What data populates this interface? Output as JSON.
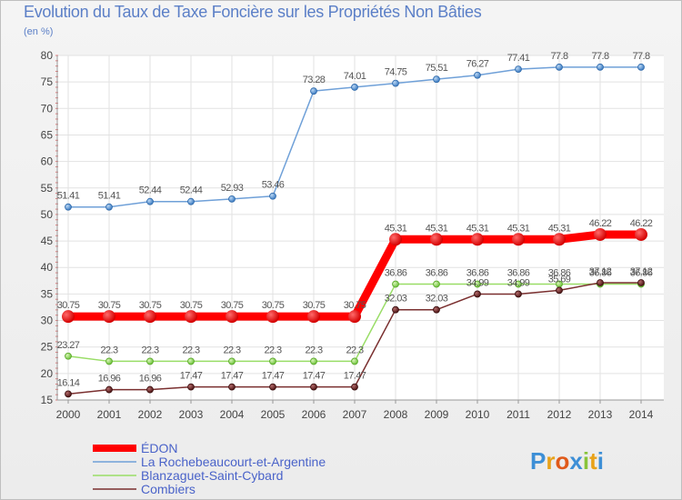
{
  "header": {
    "title": "Evolution du Taux de Taxe Foncière sur les Propriétés Non Bâties",
    "unit": "(en %)"
  },
  "logo": {
    "text": "Proxiti"
  },
  "chart_data": {
    "type": "line",
    "title": "Evolution du Taux de Taxe Foncière sur les Propriétés Non Bâties",
    "ylabel": "(en %)",
    "xlabel": "",
    "ylim": [
      15,
      80
    ],
    "yticks": [
      15,
      20,
      25,
      30,
      35,
      40,
      45,
      50,
      55,
      60,
      65,
      70,
      75,
      80
    ],
    "grid": true,
    "legend": "bottom-left",
    "x": [
      "2000",
      "2001",
      "2002",
      "2003",
      "2004",
      "2005",
      "2006",
      "2007",
      "2008",
      "2009",
      "2010",
      "2011",
      "2012",
      "2013",
      "2014"
    ],
    "series": [
      {
        "name": "ÉDON",
        "color": "#ff0000",
        "values": [
          30.75,
          30.75,
          30.75,
          30.75,
          30.75,
          30.75,
          30.75,
          30.75,
          45.31,
          45.31,
          45.31,
          45.31,
          45.31,
          46.22,
          46.22
        ],
        "labels": [
          "30.75",
          "30.75",
          "30.75",
          "30.75",
          "30.75",
          "30.75",
          "30.75",
          "30.75",
          "45.31",
          "45.31",
          "45.31",
          "45.31",
          "45.31",
          "46.22",
          "46.22"
        ]
      },
      {
        "name": "La Rochebeaucourt-et-Argentine",
        "color": "#6fa0d8",
        "values": [
          51.41,
          51.41,
          52.44,
          52.44,
          52.93,
          53.46,
          73.28,
          74.01,
          74.75,
          75.51,
          76.27,
          77.41,
          77.8,
          77.8,
          77.8
        ],
        "labels": [
          "51.41",
          "51.41",
          "52.44",
          "52.44",
          "52.93",
          "53.46",
          "73.28",
          "74.01",
          "74.75",
          "75.51",
          "76.27",
          "77.41",
          "77.8",
          "77.8",
          "77.8"
        ]
      },
      {
        "name": "Blanzaguet-Saint-Cybard",
        "color": "#99dd66",
        "values": [
          23.27,
          22.3,
          22.3,
          22.3,
          22.3,
          22.3,
          22.3,
          22.3,
          36.86,
          36.86,
          36.86,
          36.86,
          36.86,
          36.86,
          36.86
        ],
        "labels": [
          "23.27",
          "22.3",
          "22.3",
          "22.3",
          "22.3",
          "22.3",
          "22.3",
          "22.3",
          "36.86",
          "36.86",
          "36.86",
          "36.86",
          "36.86",
          "36.86",
          "36.86"
        ]
      },
      {
        "name": "Combiers",
        "color": "#7a2f2f",
        "values": [
          16.14,
          16.96,
          16.96,
          17.47,
          17.47,
          17.47,
          17.47,
          17.47,
          32.03,
          32.03,
          34.99,
          34.99,
          35.69,
          37.12,
          37.12
        ],
        "labels": [
          "16.14",
          "16.96",
          "16.96",
          "17.47",
          "17.47",
          "17.47",
          "17.47",
          "17.47",
          "32.03",
          "32.03",
          "34.99",
          "34.99",
          "35.69",
          "37.12",
          "37.12"
        ]
      }
    ]
  }
}
